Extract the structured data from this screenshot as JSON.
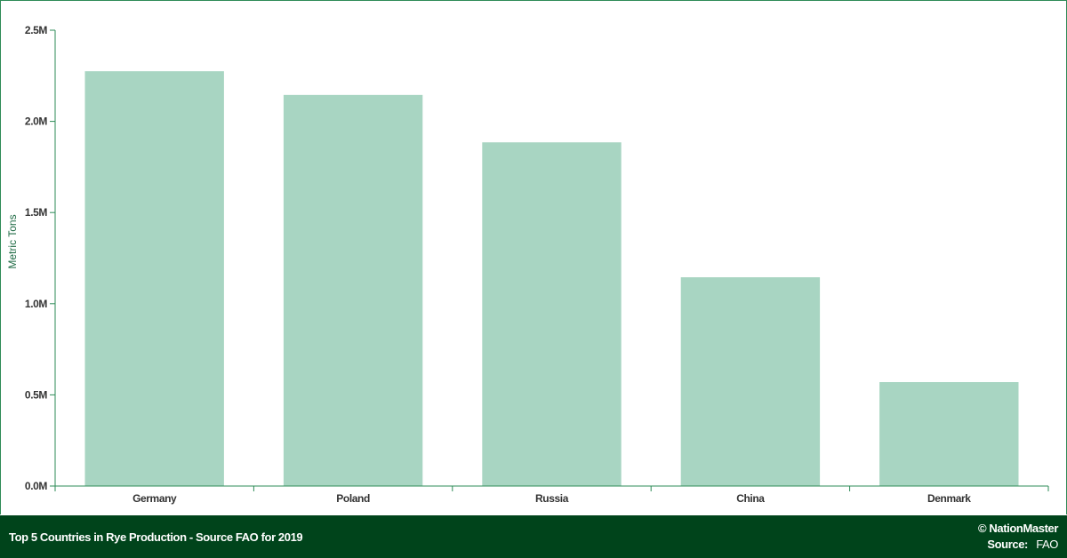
{
  "chart_data": {
    "type": "bar",
    "categories": [
      "Germany",
      "Poland",
      "Russia",
      "China",
      "Denmark"
    ],
    "values": [
      2275000,
      2145000,
      1885000,
      1145000,
      570000
    ],
    "ylabel": "Metric Tons",
    "xlabel": "",
    "ylim": [
      0,
      2500000
    ],
    "yticks": [
      0,
      500000,
      1000000,
      1500000,
      2000000,
      2500000
    ],
    "ytick_labels": [
      "0.0M",
      "0.5M",
      "1.0M",
      "1.5M",
      "2.0M",
      "2.5M"
    ],
    "grid": false,
    "colors": {
      "bar": "#a8d5c2",
      "axis": "#2e8b57"
    }
  },
  "footer": {
    "title": "Top 5 Countries in Rye Production - Source FAO for 2019",
    "brand": "© NationMaster",
    "source_label": "Source:",
    "source_value": "FAO"
  }
}
